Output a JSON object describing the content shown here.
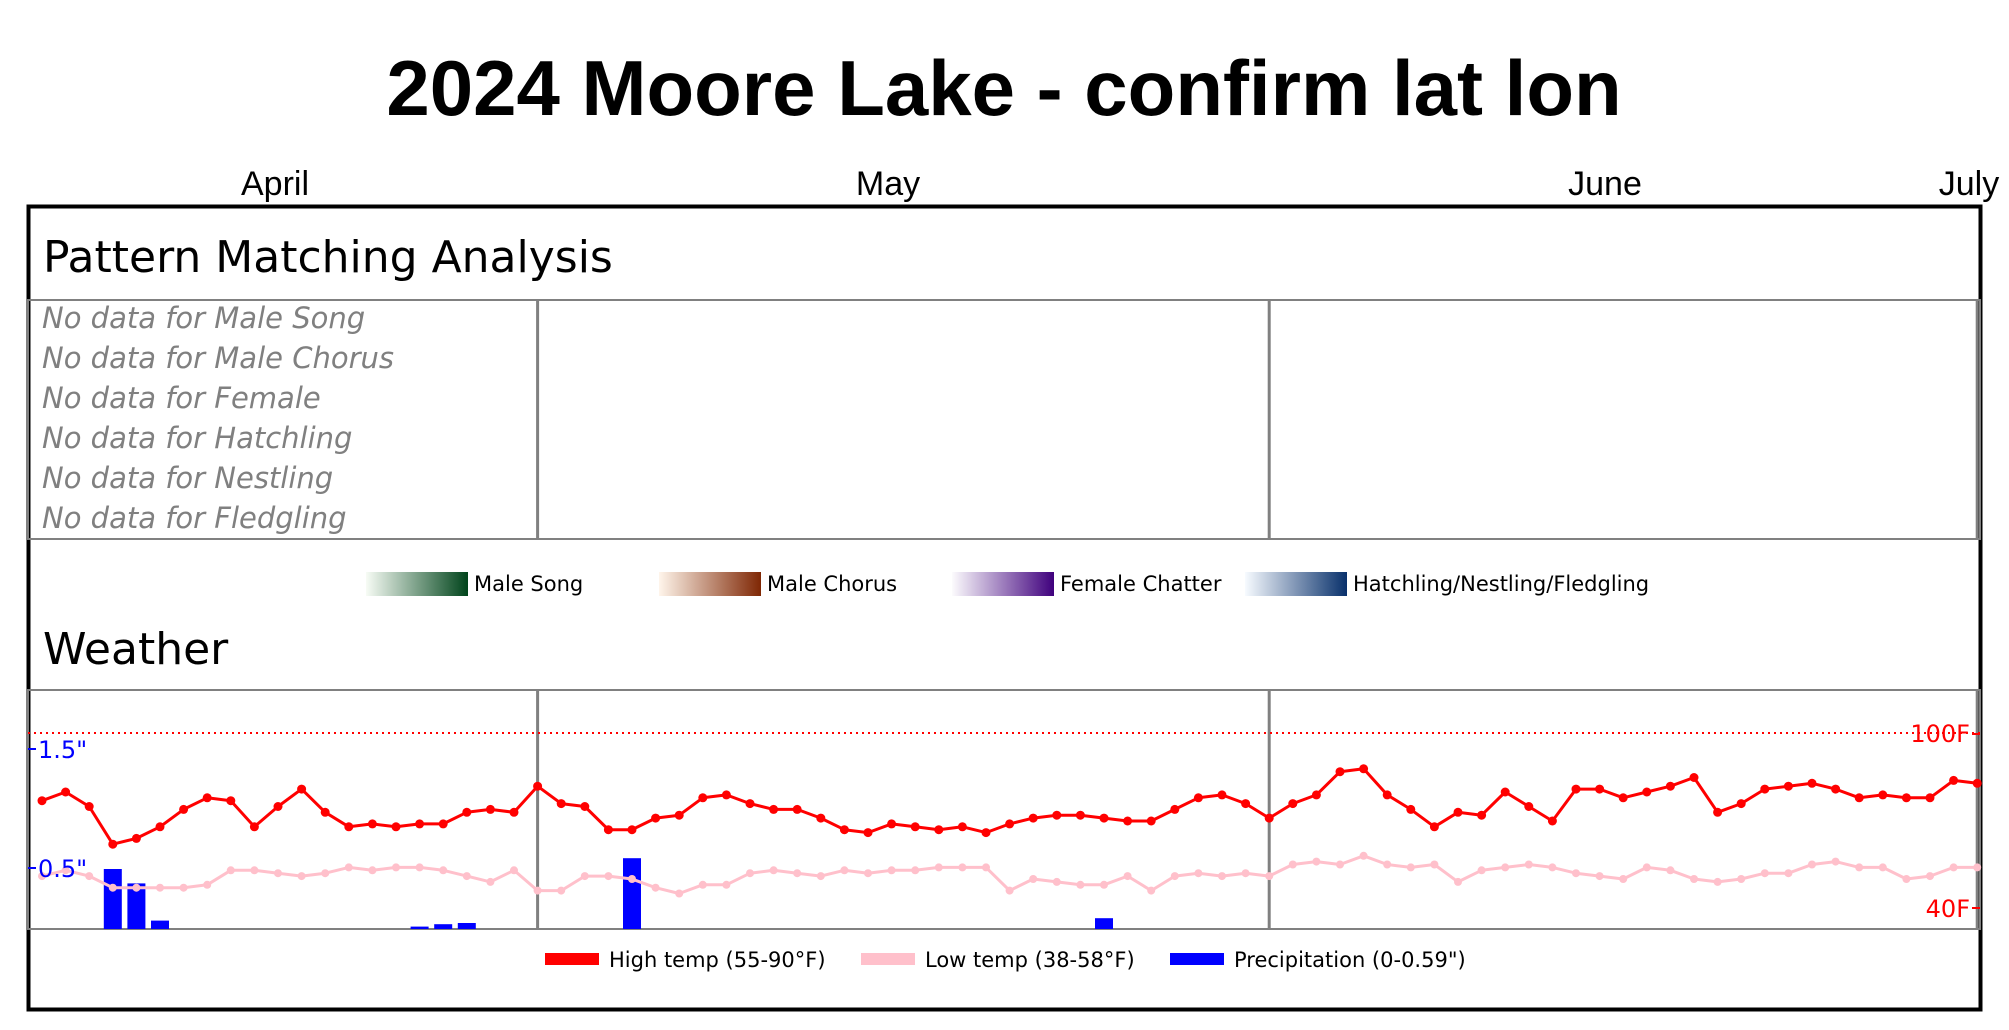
{
  "title": "2024 Moore Lake - confirm lat lon",
  "months": [
    {
      "label": "April",
      "day": 0
    },
    {
      "label": "May",
      "day": 21
    },
    {
      "label": "June",
      "day": 52
    },
    {
      "label": "July",
      "day": 82
    }
  ],
  "pattern": {
    "heading": "Pattern Matching Analysis",
    "rows": [
      "No data for Male Song",
      "No data for Male Chorus",
      "No data for Female",
      "No data for Hatchling",
      "No data for Nestling",
      "No data for Fledgling"
    ],
    "legend": [
      {
        "label": "Male Song",
        "from": "#f7fcf5",
        "to": "#00441b"
      },
      {
        "label": "Male Chorus",
        "from": "#fff5eb",
        "to": "#7f2704"
      },
      {
        "label": "Female Chatter",
        "from": "#fcfbfd",
        "to": "#3f007d"
      },
      {
        "label": "Hatchling/Nestling/Fledgling",
        "from": "#f7fbff",
        "to": "#08306b"
      }
    ]
  },
  "weather": {
    "heading": "Weather",
    "labels": {
      "precip_high": "1.5\"",
      "precip_low": "0.5\"",
      "temp_high": "100F",
      "temp_low": "40F"
    },
    "legend": [
      {
        "label": "High temp (55-90°F)",
        "color": "#ff0000"
      },
      {
        "label": "Low temp (38-58°F)",
        "color": "#ffc0cb"
      },
      {
        "label": "Precipitation (0-0.59\")",
        "color": "#0000ff"
      }
    ]
  },
  "chart_data": {
    "type": "line",
    "x_unit": "days since Apr 1 2024",
    "temp_range": [
      40,
      100
    ],
    "precip_range": [
      0,
      1.5
    ],
    "series": [
      {
        "name": "High temp (55-90°F)",
        "color": "#ff0000",
        "values": [
          77,
          80,
          75,
          62,
          64,
          68,
          74,
          78,
          77,
          68,
          75,
          81,
          73,
          68,
          69,
          68,
          69,
          69,
          73,
          74,
          73,
          82,
          76,
          75,
          67,
          67,
          71,
          72,
          78,
          79,
          76,
          74,
          74,
          71,
          67,
          66,
          69,
          68,
          67,
          68,
          66,
          69,
          71,
          72,
          72,
          71,
          70,
          70,
          74,
          78,
          79,
          76,
          71,
          76,
          79,
          87,
          88,
          79,
          74,
          68,
          73,
          72,
          80,
          75,
          70,
          81,
          81,
          78,
          80,
          82,
          85,
          73,
          76,
          81,
          82,
          83,
          81,
          78,
          79,
          78,
          78,
          84,
          83
        ]
      },
      {
        "name": "Low temp (38-58°F)",
        "color": "#ffc0cb",
        "values": [
          51,
          53,
          51,
          47,
          47,
          47,
          47,
          48,
          53,
          53,
          52,
          51,
          52,
          54,
          53,
          54,
          54,
          53,
          51,
          49,
          53,
          46,
          46,
          51,
          51,
          50,
          47,
          45,
          48,
          48,
          52,
          53,
          52,
          51,
          53,
          52,
          53,
          53,
          54,
          54,
          54,
          46,
          50,
          49,
          48,
          48,
          51,
          46,
          51,
          52,
          51,
          52,
          51,
          55,
          56,
          55,
          58,
          55,
          54,
          55,
          49,
          53,
          54,
          55,
          54,
          52,
          51,
          50,
          54,
          53,
          50,
          49,
          50,
          52,
          52,
          55,
          56,
          54,
          54,
          50,
          51,
          54,
          54
        ]
      },
      {
        "name": "Precipitation (0-0.59\")",
        "color": "#0000ff",
        "values": [
          0,
          0,
          0,
          0.5,
          0.38,
          0.07,
          0,
          0,
          0,
          0,
          0,
          0,
          0,
          0,
          0,
          0,
          0.02,
          0.04,
          0.05,
          0,
          0,
          0,
          0,
          0,
          0,
          0.59,
          0,
          0,
          0,
          0,
          0,
          0,
          0,
          0,
          0,
          0,
          0,
          0,
          0,
          0,
          0,
          0,
          0,
          0,
          0,
          0.09,
          0,
          0,
          0,
          0,
          0,
          0,
          0,
          0,
          0,
          0,
          0,
          0,
          0,
          0,
          0,
          0,
          0,
          0,
          0,
          0,
          0,
          0,
          0,
          0,
          0,
          0,
          0,
          0,
          0,
          0,
          0,
          0,
          0,
          0,
          0,
          0,
          0
        ]
      }
    ]
  }
}
